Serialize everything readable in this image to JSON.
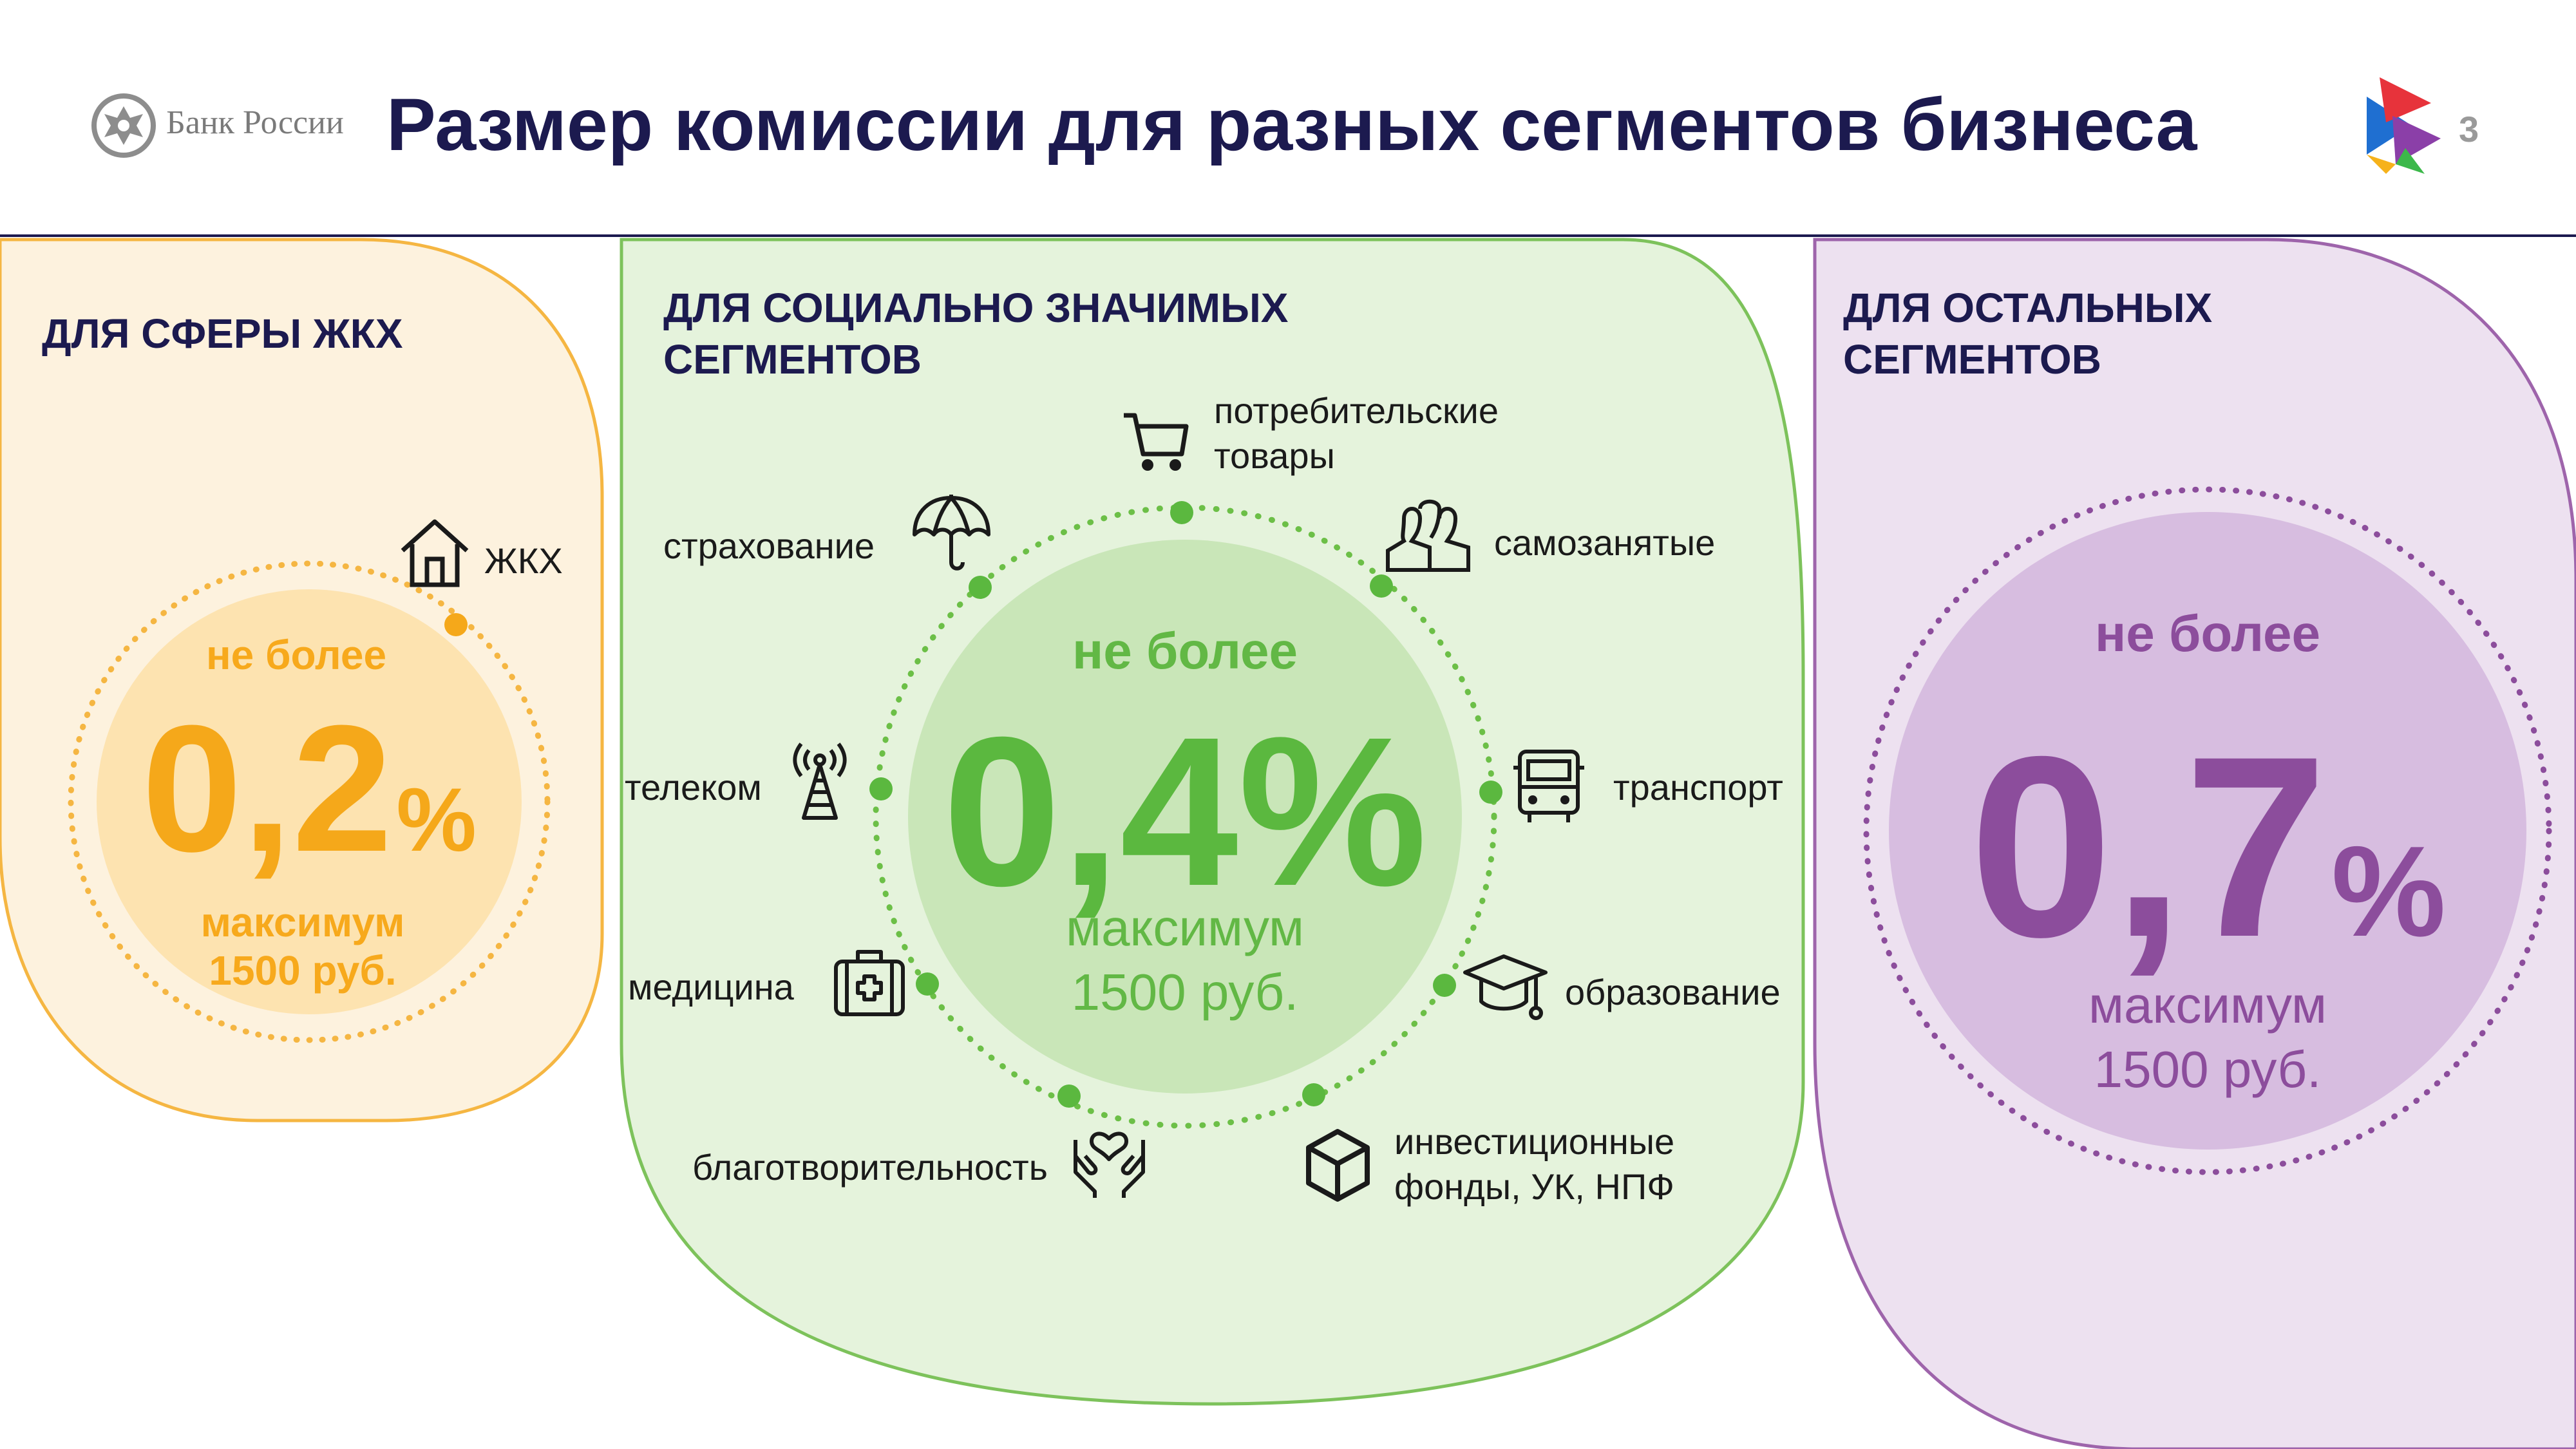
{
  "header": {
    "logo_text": "Банк России",
    "title": "Размер комиссии для разных сегментов бизнеса",
    "page_number": "3"
  },
  "panels": {
    "housing": {
      "title_lines": [
        "ДЛЯ СФЕРЫ ЖКХ"
      ],
      "segment_label": "ЖКХ",
      "limit_prefix": "не более",
      "rate": "0,2",
      "rate_unit": "%",
      "max_line1": "максимум",
      "max_line2": "1500 руб.",
      "color": "#f5a81a"
    },
    "social": {
      "title_lines": [
        "ДЛЯ СОЦИАЛЬНО ЗНАЧИМЫХ",
        "СЕГМЕНТОВ"
      ],
      "segments": [
        {
          "label_lines": [
            "потребительские",
            "товары"
          ],
          "icon": "shopping-cart-icon"
        },
        {
          "label_lines": [
            "самозанятые"
          ],
          "icon": "people-icon"
        },
        {
          "label_lines": [
            "транспорт"
          ],
          "icon": "bus-icon"
        },
        {
          "label_lines": [
            "образование"
          ],
          "icon": "graduation-cap-icon"
        },
        {
          "label_lines": [
            "инвестиционные",
            "фонды, УК, НПФ"
          ],
          "icon": "cube-icon"
        },
        {
          "label_lines": [
            "благотворительность"
          ],
          "icon": "hands-heart-icon"
        },
        {
          "label_lines": [
            "медицина"
          ],
          "icon": "first-aid-kit-icon"
        },
        {
          "label_lines": [
            "телеком"
          ],
          "icon": "antenna-tower-icon"
        },
        {
          "label_lines": [
            "страхование"
          ],
          "icon": "umbrella-icon"
        }
      ],
      "limit_prefix": "не более",
      "rate": "0,4%",
      "max_line1": "максимум",
      "max_line2": "1500 руб.",
      "color": "#5bb83f"
    },
    "other": {
      "title_lines": [
        "ДЛЯ ОСТАЛЬНЫХ",
        "СЕГМЕНТОВ"
      ],
      "limit_prefix": "не более",
      "rate": "0,7",
      "rate_unit": "%",
      "max_line1": "максимум",
      "max_line2": "1500 руб.",
      "color": "#8c4d9c"
    }
  },
  "icons": {
    "housing": "house-icon",
    "logo": "bank-of-russia-emblem-icon",
    "brand": "brand-triangle-logo-icon"
  }
}
